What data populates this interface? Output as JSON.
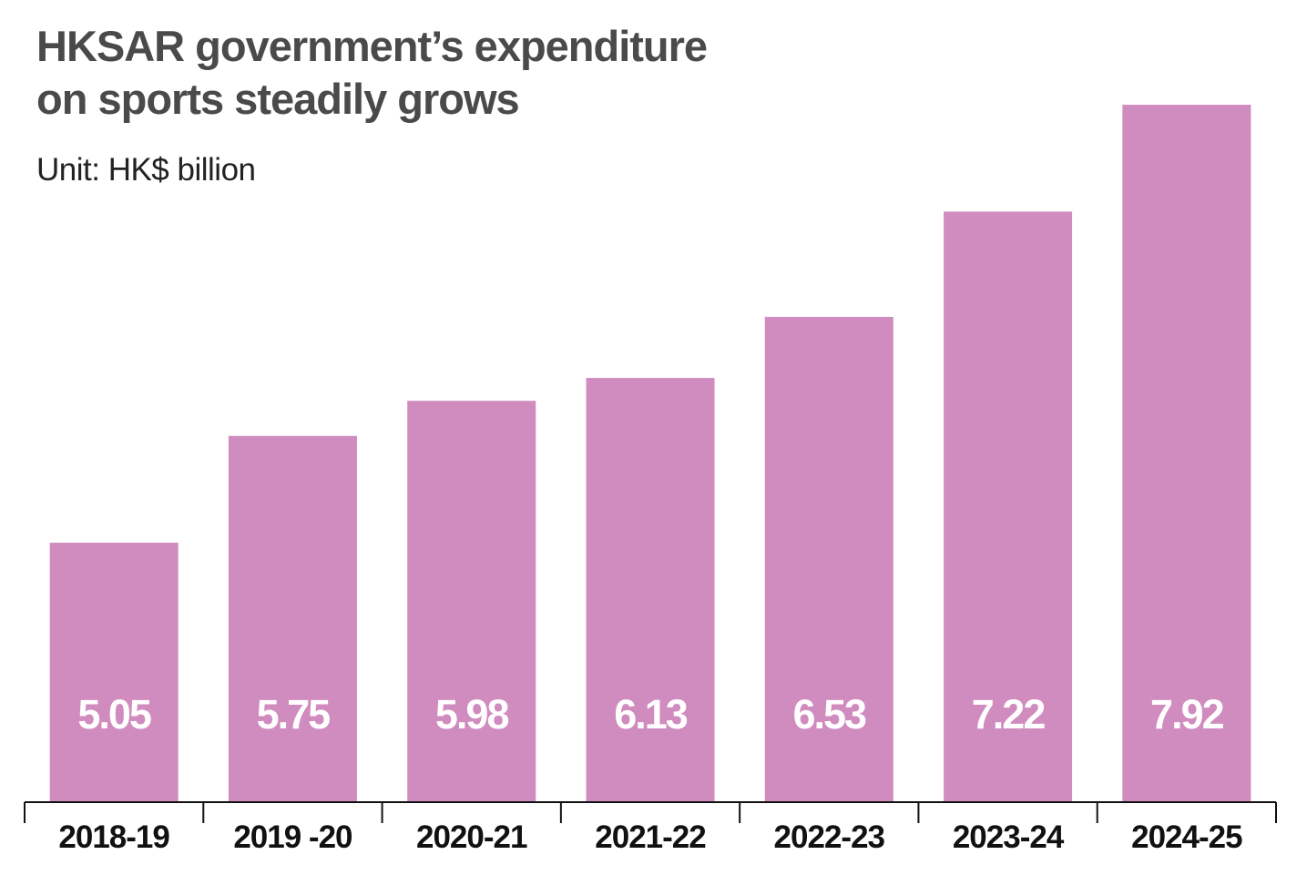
{
  "chart_data": {
    "type": "bar",
    "title_lines": [
      "HKSAR government’s expenditure",
      "on sports steadily grows"
    ],
    "subtitle": "Unit: HK$ billion",
    "categories": [
      "2018-19",
      "2019 -20",
      "2020-21",
      "2021-22",
      "2022-23",
      "2023-24",
      "2024-25"
    ],
    "values": [
      5.05,
      5.75,
      5.98,
      6.13,
      6.53,
      7.22,
      7.92
    ],
    "value_labels": [
      "5.05",
      "5.75",
      "5.98",
      "6.13",
      "6.53",
      "7.22",
      "7.92"
    ],
    "xlabel": "",
    "ylabel": "",
    "grid": false,
    "legend": "none",
    "bar_color": "#d08bbf",
    "value_label_color": "#ffffff",
    "axis_color": "#111111"
  }
}
